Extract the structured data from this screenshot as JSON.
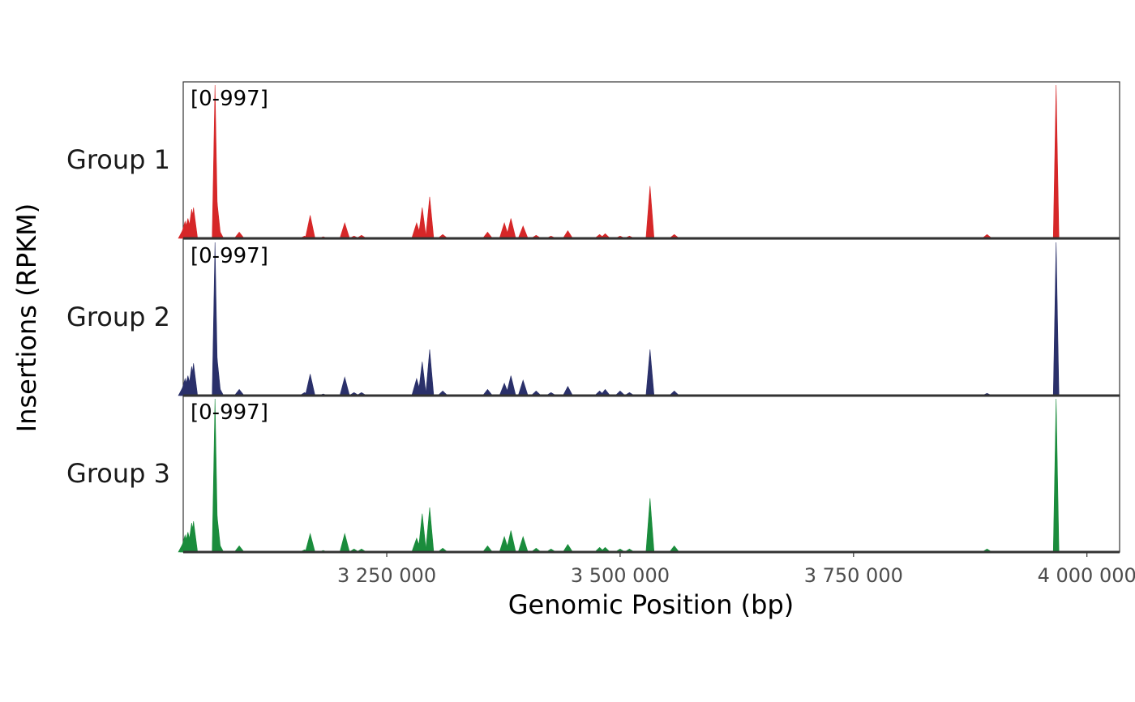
{
  "chart_data": {
    "type": "area",
    "title": "",
    "xlabel": "Genomic Position (bp)",
    "ylabel": "Insertions (RPKM)",
    "xlim": [
      3032000,
      4035000
    ],
    "ylim": [
      0,
      997
    ],
    "grid": false,
    "legend": "none",
    "xticks": [
      3250000,
      3500000,
      3750000,
      4000000
    ],
    "xtick_labels": [
      "3 250 000",
      "3 500 000",
      "3 750 000",
      "4 000 000"
    ],
    "series": [
      {
        "name": "Group 1",
        "range_label": "[0-997]",
        "color": "#d62728",
        "x": [
          3032000,
          3034000,
          3037000,
          3041000,
          3043000,
          3066000,
          3068000,
          3070000,
          3092000,
          3162000,
          3168000,
          3182000,
          3205000,
          3215000,
          3223000,
          3282000,
          3288000,
          3296000,
          3310000,
          3358000,
          3376000,
          3383000,
          3396000,
          3410000,
          3426000,
          3444000,
          3478000,
          3484000,
          3500000,
          3510000,
          3532000,
          3558000,
          3893000,
          3967000
        ],
        "values": [
          60,
          110,
          130,
          190,
          200,
          997,
          250,
          60,
          40,
          15,
          150,
          10,
          100,
          15,
          20,
          100,
          200,
          270,
          25,
          40,
          100,
          130,
          80,
          20,
          15,
          50,
          25,
          30,
          15,
          15,
          340,
          25,
          25,
          997
        ]
      },
      {
        "name": "Group 2",
        "range_label": "[0-997]",
        "color": "#2a306a",
        "x": [
          3032000,
          3034000,
          3037000,
          3041000,
          3043000,
          3066000,
          3068000,
          3070000,
          3092000,
          3162000,
          3168000,
          3182000,
          3205000,
          3215000,
          3223000,
          3282000,
          3288000,
          3296000,
          3310000,
          3358000,
          3376000,
          3383000,
          3396000,
          3410000,
          3426000,
          3444000,
          3478000,
          3484000,
          3500000,
          3510000,
          3532000,
          3558000,
          3893000,
          3967000
        ],
        "values": [
          60,
          110,
          130,
          190,
          210,
          997,
          260,
          60,
          40,
          20,
          140,
          10,
          120,
          20,
          20,
          110,
          220,
          300,
          30,
          40,
          80,
          130,
          100,
          30,
          20,
          60,
          30,
          40,
          30,
          20,
          300,
          30,
          15,
          997
        ]
      },
      {
        "name": "Group 3",
        "range_label": "[0-997]",
        "color": "#1a8c3c",
        "x": [
          3032000,
          3034000,
          3037000,
          3041000,
          3043000,
          3066000,
          3068000,
          3070000,
          3092000,
          3162000,
          3168000,
          3182000,
          3205000,
          3215000,
          3223000,
          3282000,
          3288000,
          3296000,
          3310000,
          3358000,
          3376000,
          3383000,
          3396000,
          3410000,
          3426000,
          3444000,
          3478000,
          3484000,
          3500000,
          3510000,
          3532000,
          3558000,
          3893000,
          3967000
        ],
        "values": [
          60,
          110,
          130,
          190,
          200,
          997,
          250,
          60,
          40,
          15,
          120,
          10,
          120,
          20,
          20,
          90,
          250,
          290,
          25,
          40,
          100,
          140,
          100,
          25,
          20,
          50,
          30,
          30,
          20,
          20,
          350,
          40,
          20,
          997
        ]
      }
    ]
  }
}
